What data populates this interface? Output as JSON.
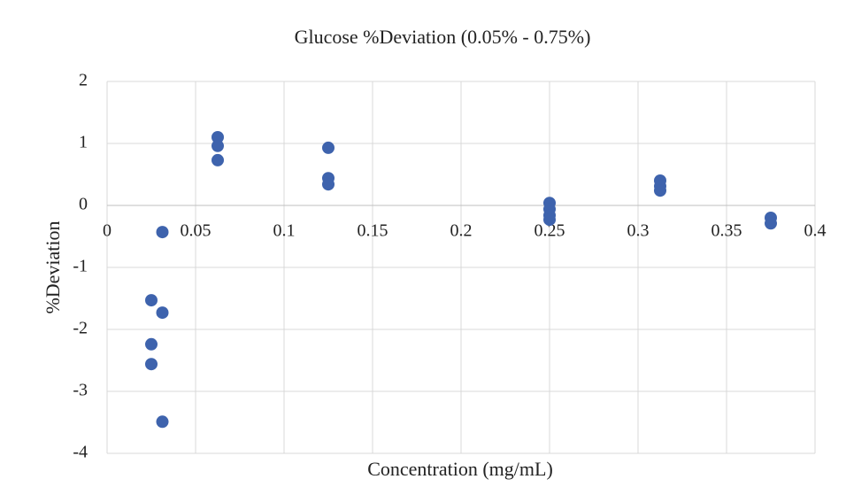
{
  "chart_data": {
    "type": "scatter",
    "title": "Glucose %Deviation (0.05% - 0.75%)",
    "x_label": "Concentration (mg/mL)",
    "y_label": "%Deviation",
    "x": [
      0.025,
      0.025,
      0.025,
      0.03125,
      0.03125,
      0.03125,
      0.0625,
      0.0625,
      0.0625,
      0.125,
      0.125,
      0.125,
      0.25,
      0.25,
      0.25,
      0.25,
      0.3125,
      0.3125,
      0.3125,
      0.375,
      0.375
    ],
    "values": [
      -1.53,
      -2.24,
      -2.56,
      -0.43,
      -1.73,
      -3.49,
      1.1,
      0.96,
      0.73,
      0.93,
      0.44,
      0.34,
      0.04,
      -0.06,
      -0.16,
      -0.23,
      0.4,
      0.31,
      0.24,
      -0.2,
      -0.29
    ],
    "color": "#3e63ad",
    "xlim": [
      0,
      0.4
    ],
    "xticks": [
      0,
      0.05,
      0.1,
      0.15,
      0.2,
      0.25,
      0.3,
      0.35,
      0.4
    ],
    "ylim": [
      -4,
      2
    ],
    "yticks": [
      -4,
      -3,
      -2,
      -1,
      0,
      1,
      2
    ],
    "grid": true
  }
}
